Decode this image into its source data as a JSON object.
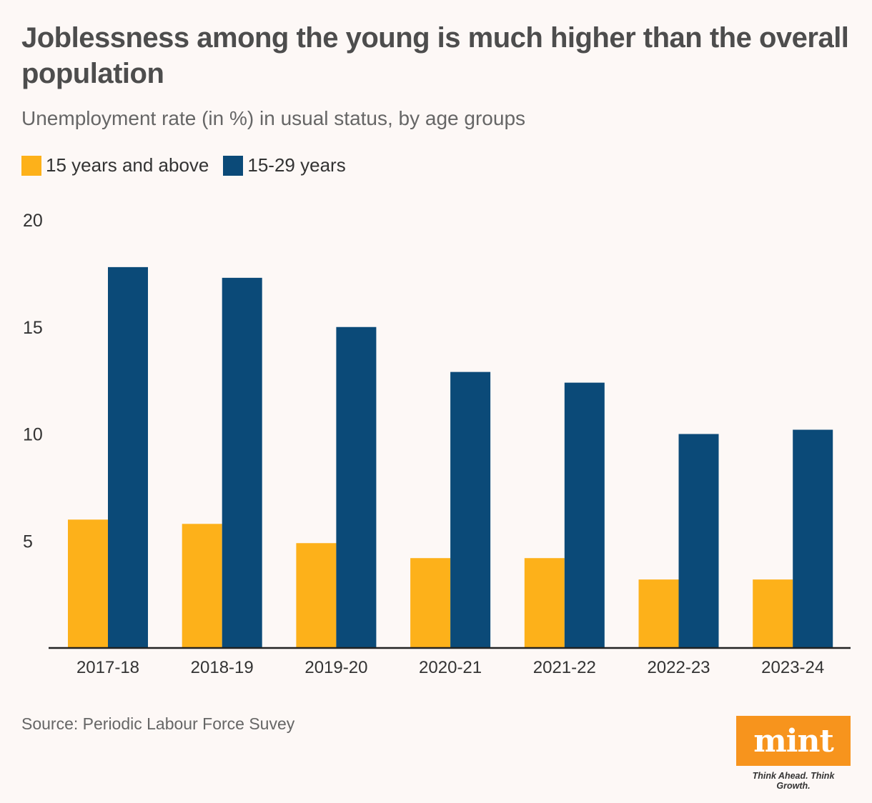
{
  "title": "Joblessness among the young is much higher than the overall population",
  "subtitle": "Unemployment rate (in %) in usual status, by age groups",
  "source": "Source: Periodic Labour Force Suvey",
  "brand": {
    "logo_text": "mint",
    "tagline": "Think Ahead. Think Growth.",
    "color": "#f7941d"
  },
  "chart_data": {
    "type": "bar",
    "categories": [
      "2017-18",
      "2018-19",
      "2019-20",
      "2020-21",
      "2021-22",
      "2022-23",
      "2023-24"
    ],
    "series": [
      {
        "name": "15 years and above",
        "color": "#fdb11a",
        "values": [
          6.0,
          5.8,
          4.9,
          4.2,
          4.2,
          3.2,
          3.2
        ]
      },
      {
        "name": "15-29 years",
        "color": "#0b4a78",
        "values": [
          17.8,
          17.3,
          15.0,
          12.9,
          12.4,
          10.0,
          10.2
        ]
      }
    ],
    "y_ticks": [
      "5",
      "10",
      "15",
      "20"
    ],
    "ylim": [
      0,
      20
    ],
    "grid": false,
    "legend_position": "top-left"
  }
}
